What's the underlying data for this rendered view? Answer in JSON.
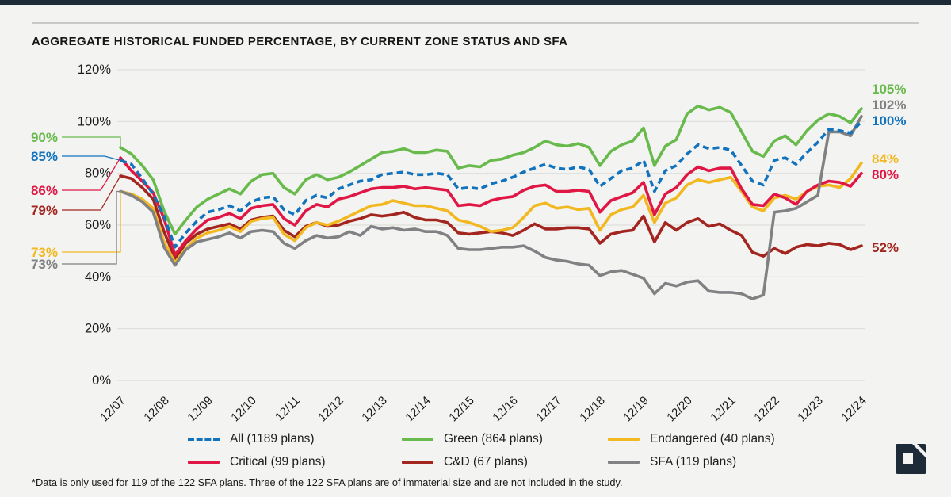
{
  "title": "AGGREGATE HISTORICAL FUNDED PERCENTAGE, BY CURRENT ZONE STATUS AND SFA",
  "footnote": "*Data is only used for 119 of the 122 SFA plans. Three of the 122 SFA plans are of immaterial size and are not included in the study.",
  "colors": {
    "background": "#f3f3f1",
    "gridline": "#dedddb",
    "axis_text": "#1b1b1b",
    "navy": "#1d2b39",
    "all_blue": "#1173bd",
    "green": "#69ba4d",
    "endangered_yellow": "#f2b821",
    "critical_red": "#e01745",
    "cd_dark_red": "#a3251f",
    "sfa_gray": "#7f8183"
  },
  "chart_data": {
    "type": "line",
    "title": "AGGREGATE HISTORICAL FUNDED PERCENTAGE, BY CURRENT ZONE STATUS AND SFA",
    "x_tick_labels": [
      "12/07",
      "12/08",
      "12/09",
      "12/10",
      "12/11",
      "12/12",
      "12/13",
      "12/14",
      "12/15",
      "12/16",
      "12/17",
      "12/18",
      "12/19",
      "12/20",
      "12/21",
      "12/22",
      "12/23",
      "12/24"
    ],
    "points_per_year": 4,
    "y_ticks": [
      0,
      20,
      40,
      60,
      80,
      100,
      120
    ],
    "y_tick_suffix": "%",
    "ylim": [
      0,
      120
    ],
    "grid": true,
    "legend_position": "bottom",
    "series": [
      {
        "key": "all",
        "name": "All (1189 plans)",
        "color": "#1173bd",
        "dashed": true,
        "start_label": "85%",
        "end_label": "100%",
        "values": [
          85,
          83.5,
          78,
          72,
          63.5,
          51.5,
          57,
          61.5,
          65,
          66,
          67.5,
          65.5,
          69,
          70.5,
          71,
          66,
          64,
          69.5,
          71.5,
          70.5,
          74,
          75.5,
          77,
          77.5,
          79.5,
          80,
          80.5,
          79.5,
          79.5,
          80,
          79.5,
          74,
          74.5,
          74,
          76,
          77,
          78.5,
          80.5,
          82,
          83.5,
          82,
          81.5,
          82.5,
          81.5,
          75,
          78,
          81,
          82,
          85,
          73,
          81,
          83,
          87.5,
          91,
          89.5,
          90,
          89,
          83,
          77,
          75.5,
          85,
          86,
          83.5,
          88,
          92,
          97,
          96.5,
          95.5,
          100
        ]
      },
      {
        "key": "green",
        "name": "Green (864 plans)",
        "color": "#69ba4d",
        "dashed": false,
        "start_label": "90%",
        "end_label": "105%",
        "values": [
          90,
          87.5,
          83,
          77.5,
          65.5,
          56.5,
          62,
          67,
          70,
          72,
          74,
          72,
          77,
          79.5,
          80,
          74.5,
          72,
          77.5,
          79.5,
          77.5,
          78.5,
          80.5,
          83,
          85.5,
          88,
          88.5,
          89.5,
          88,
          88,
          89,
          88.5,
          82,
          83,
          82.5,
          85,
          85.5,
          87,
          88,
          90,
          92.5,
          91,
          90.5,
          91.5,
          90,
          83,
          88.5,
          91,
          92.5,
          97.5,
          83,
          90.5,
          93,
          103,
          106,
          104.5,
          105.5,
          103.5,
          96,
          88.5,
          86.5,
          92.5,
          94.5,
          91,
          96.5,
          100.5,
          103,
          102,
          99.5,
          105
        ]
      },
      {
        "key": "endangered",
        "name": "Endangered (40 plans)",
        "color": "#f2b821",
        "dashed": false,
        "start_label": "73%",
        "end_label": "84%",
        "values": [
          73,
          72,
          70,
          66.5,
          53.5,
          45.5,
          51,
          55,
          57,
          58,
          59.5,
          57.5,
          61.5,
          62.5,
          63,
          56.5,
          54,
          59,
          61,
          60,
          61.5,
          63.5,
          65.5,
          67.5,
          68,
          69.5,
          68.5,
          67.5,
          67.5,
          66.5,
          65.5,
          62,
          61,
          59.5,
          57.5,
          58,
          59,
          63,
          67.5,
          68.5,
          66.5,
          67,
          66,
          66.5,
          58,
          64,
          66,
          67,
          71.5,
          61,
          68.5,
          70.5,
          75.5,
          77.5,
          76.5,
          77.5,
          78.5,
          73,
          67,
          65.5,
          70.5,
          71.5,
          70,
          73,
          75,
          75.5,
          74.5,
          78,
          84
        ]
      },
      {
        "key": "critical",
        "name": "Critical (99 plans)",
        "color": "#e01745",
        "dashed": false,
        "start_label": "86%",
        "end_label": "80%",
        "values": [
          86,
          81,
          77,
          72.5,
          62.5,
          48.5,
          54,
          58.5,
          62,
          63,
          64.5,
          62.5,
          66.5,
          67.5,
          68,
          62.5,
          60,
          65.5,
          68,
          67,
          70,
          71,
          72.5,
          74,
          74.5,
          74.5,
          75,
          74,
          74.5,
          74,
          73.5,
          67.5,
          68,
          67.5,
          69.5,
          70.5,
          71,
          73.5,
          75,
          75.5,
          73,
          73,
          73.5,
          73,
          65,
          69.5,
          71,
          72.5,
          76.5,
          64,
          72,
          74.5,
          79.5,
          82.5,
          81,
          82,
          82,
          74,
          68,
          67.5,
          72,
          70.5,
          68,
          73,
          75.5,
          77,
          76.5,
          75,
          80
        ]
      },
      {
        "key": "cd",
        "name": "C&D (67 plans)",
        "color": "#a3251f",
        "dashed": false,
        "start_label": "79%",
        "end_label": "52%",
        "values": [
          79,
          78,
          74.5,
          70,
          57.5,
          47,
          53,
          56.5,
          58.5,
          59.5,
          60.5,
          58.5,
          62,
          63,
          63.5,
          58,
          55.5,
          59.5,
          61,
          59.5,
          60,
          61.5,
          62.5,
          64,
          63.5,
          64,
          65,
          63,
          62,
          62,
          61,
          57,
          56.5,
          57,
          57.5,
          57,
          56,
          58,
          60.5,
          58.5,
          58.5,
          59,
          59,
          58.5,
          53,
          56.5,
          57.5,
          58,
          63.5,
          53.5,
          61,
          58,
          61,
          62.5,
          59.5,
          60.5,
          58,
          56,
          49.5,
          48,
          51,
          49,
          51.5,
          52.5,
          52,
          53,
          52.5,
          50.5,
          52
        ]
      },
      {
        "key": "sfa",
        "name": "SFA (119 plans)",
        "color": "#7f8183",
        "dashed": false,
        "start_label": "73%",
        "end_label": "102%",
        "values": [
          73,
          71.5,
          69,
          65,
          51.5,
          44.5,
          50.5,
          53.5,
          54.5,
          55.5,
          57,
          55,
          57.5,
          58,
          57.5,
          53,
          51,
          54,
          56,
          55,
          55.5,
          57.5,
          56,
          59.5,
          58.5,
          59,
          58,
          58.5,
          57.5,
          57.5,
          56,
          51,
          50.5,
          50.5,
          51,
          51.5,
          51.5,
          52,
          50,
          47.5,
          46.5,
          46,
          45,
          44.5,
          40.5,
          42,
          42.5,
          41,
          39.5,
          33.5,
          37.5,
          36.5,
          38,
          38.5,
          34.5,
          34,
          34,
          33.5,
          31.5,
          33,
          65,
          65.5,
          66.5,
          69,
          71.5,
          96,
          96,
          94.5,
          102
        ]
      }
    ]
  },
  "legend": {
    "row1": [
      "All (1189 plans)",
      "Green (864 plans)",
      "Endangered (40 plans)"
    ],
    "row2": [
      "Critical (99 plans)",
      "C&D (67 plans)",
      "SFA (119 plans)"
    ]
  },
  "logo_name": "publisher-logo-mark"
}
